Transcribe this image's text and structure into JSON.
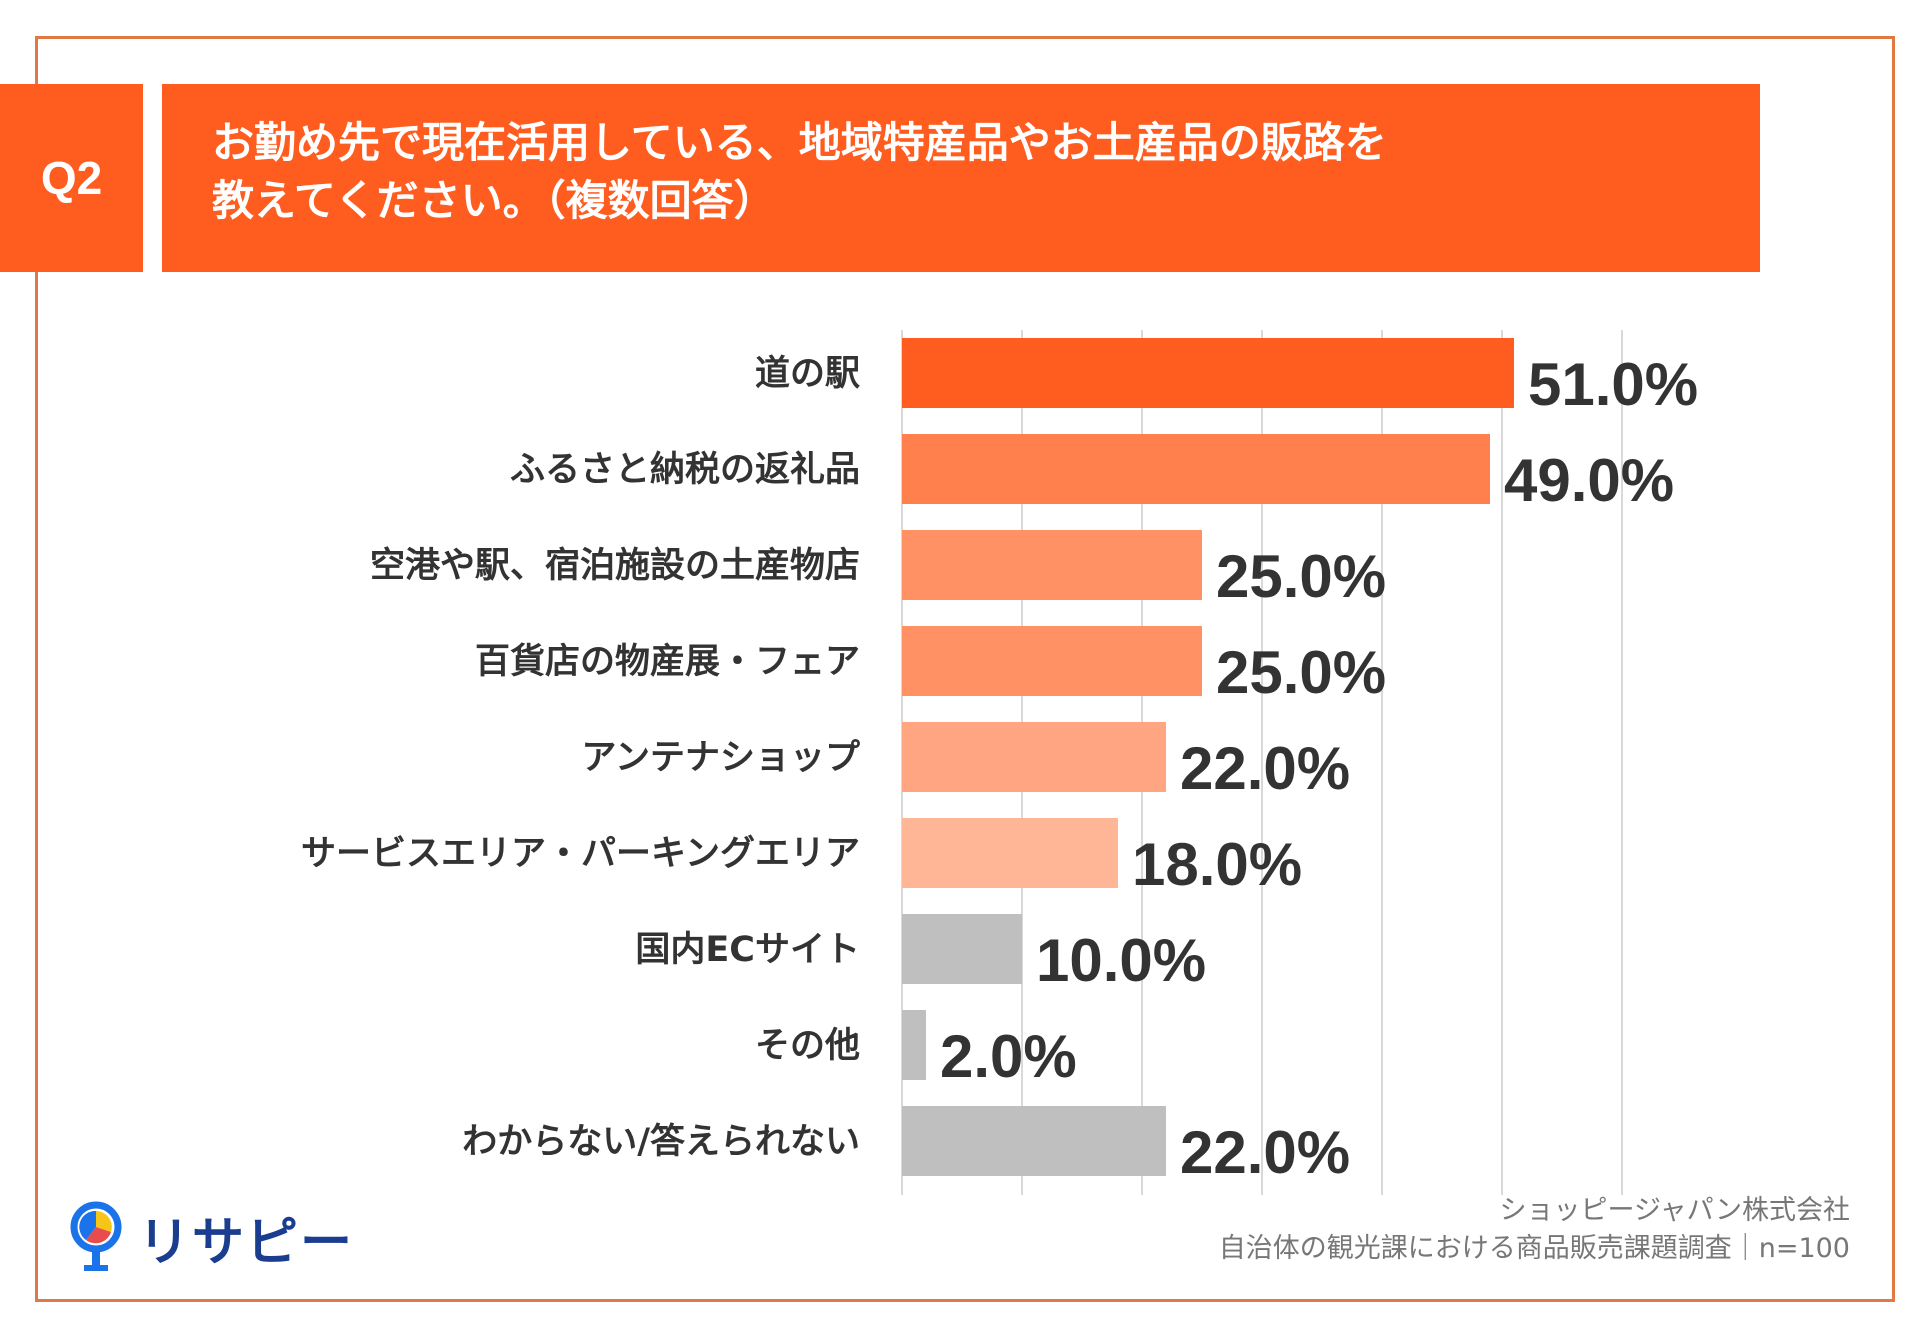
{
  "header": {
    "badge": "Q2",
    "title_line1": "お勤め先で現在活用している、地域特産品やお土産品の販路を",
    "title_line2": "教えてください。（複数回答）"
  },
  "colors": {
    "accent": "#ff5d1f",
    "frame": "#e07a45",
    "grid": "#d9d9d9"
  },
  "chart_data": {
    "type": "bar",
    "orientation": "horizontal",
    "categories": [
      "道の駅",
      "ふるさと納税の返礼品",
      "空港や駅、宿泊施設の土産物店",
      "百貨店の物産展・フェア",
      "アンテナショップ",
      "サービスエリア・パーキングエリア",
      "国内ECサイト",
      "その他",
      "わからない/答えられない"
    ],
    "values": [
      51.0,
      49.0,
      25.0,
      25.0,
      22.0,
      18.0,
      10.0,
      2.0,
      22.0
    ],
    "value_labels": [
      "51.0%",
      "49.0%",
      "25.0%",
      "25.0%",
      "22.0%",
      "18.0%",
      "10.0%",
      "2.0%",
      "22.0%"
    ],
    "bar_colors": [
      "#ff5d1f",
      "#ff7f4d",
      "#ff9164",
      "#ff9164",
      "#ffa582",
      "#ffb697",
      "#bfbfbf",
      "#bfbfbf",
      "#bfbfbf"
    ],
    "xlim": [
      0,
      60
    ],
    "grid": true,
    "gridline_step": 10
  },
  "footer": {
    "logo_text": "リサピー",
    "source_line1": "ショッピージャパン株式会社",
    "source_line2": "自治体の観光課における商品販売課題調査｜n=100"
  }
}
